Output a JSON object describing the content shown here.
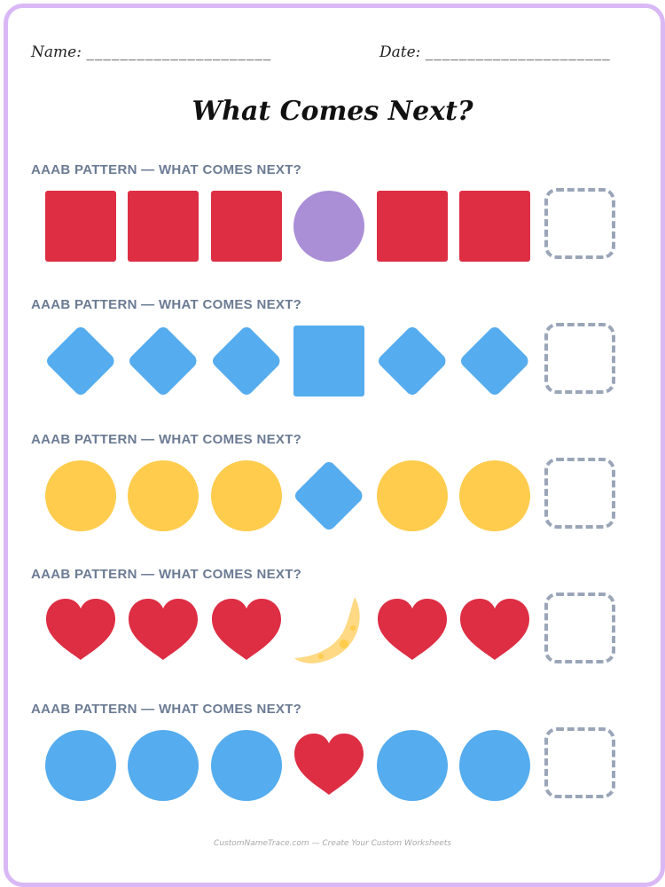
{
  "header": {
    "name_label": "Name:",
    "name_line": "______________________",
    "date_label": "Date:",
    "date_line": "______________________"
  },
  "title": "What Comes Next?",
  "colors": {
    "red": "#dd2e44",
    "purple": "#aa8ed6",
    "blue": "#55acee",
    "yellow": "#ffcc4d",
    "moon": "#ffd983",
    "moon_spot": "#ffcc4d",
    "border": "#d9b8f5",
    "label": "#6b7b94",
    "dashed_box": "#9aa6b8"
  },
  "rows": [
    {
      "label": "AAAB PATTERN — WHAT COMES NEXT?",
      "shapes": [
        "red-square",
        "red-square",
        "red-square",
        "purple-circle",
        "red-square",
        "red-square"
      ]
    },
    {
      "label": "AAAB PATTERN — WHAT COMES NEXT?",
      "shapes": [
        "blue-diamond",
        "blue-diamond",
        "blue-diamond",
        "blue-square",
        "blue-diamond",
        "blue-diamond"
      ]
    },
    {
      "label": "AAAB PATTERN — WHAT COMES NEXT?",
      "shapes": [
        "yellow-circle",
        "yellow-circle",
        "yellow-circle",
        "blue-diamond",
        "yellow-circle",
        "yellow-circle"
      ]
    },
    {
      "label": "AAAB PATTERN — WHAT COMES NEXT?",
      "shapes": [
        "red-heart",
        "red-heart",
        "red-heart",
        "crescent-moon",
        "red-heart",
        "red-heart"
      ]
    },
    {
      "label": "AAAB PATTERN — WHAT COMES NEXT?",
      "shapes": [
        "blue-circle",
        "blue-circle",
        "blue-circle",
        "red-heart",
        "blue-circle",
        "blue-circle"
      ]
    }
  ],
  "footer": "CustomNameTrace.com — Create Your Custom Worksheets"
}
